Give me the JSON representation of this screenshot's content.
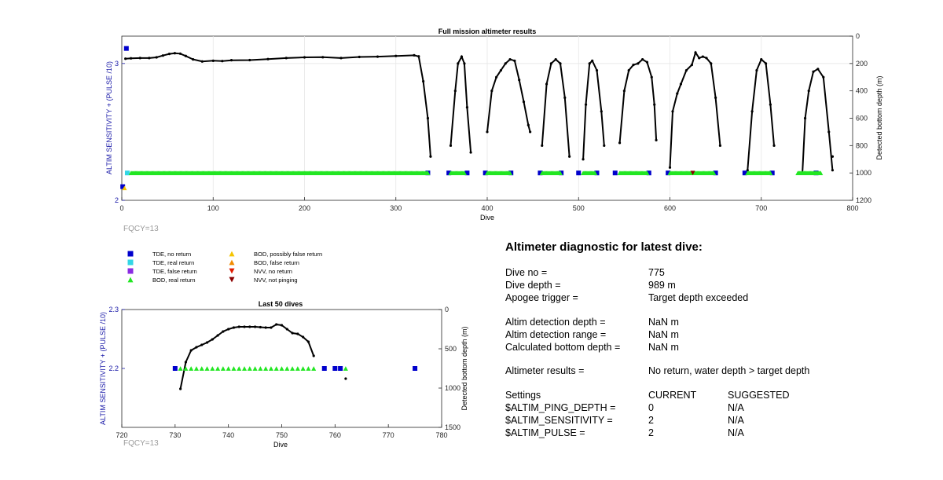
{
  "colors": {
    "tde_no_return": "#0000cc",
    "tde_real_return": "#33d6e6",
    "tde_false_return": "#8a2be2",
    "bod_real_return": "#22e622",
    "bod_possibly_false": "#f5c400",
    "bod_false_return": "#f28c00",
    "nvv_no_return": "#e01b00",
    "nvv_not_pinging": "#8b0000",
    "axis_left": "#1a1aa8",
    "depth_line": "#000000",
    "fqcy_text": "#9a9a9a"
  },
  "legend": [
    {
      "label": "TDE, no return",
      "marker": "square",
      "color": "#0000cc"
    },
    {
      "label": "TDE, real return",
      "marker": "square",
      "color": "#33d6e6"
    },
    {
      "label": "TDE, false return",
      "marker": "square",
      "color": "#8a2be2"
    },
    {
      "label": "BOD, real return",
      "marker": "triangle-up",
      "color": "#22e622"
    },
    {
      "label": "BOD, possibly false return",
      "marker": "triangle-up",
      "color": "#f5c400"
    },
    {
      "label": "BOD, false return",
      "marker": "triangle-up",
      "color": "#f28c00"
    },
    {
      "label": "NVV, no return",
      "marker": "triangle-down",
      "color": "#e01b00"
    },
    {
      "label": "NVV, not pinging",
      "marker": "triangle-down",
      "color": "#8b0000"
    }
  ],
  "chart_data": [
    {
      "type": "scatter",
      "title": "Full mission altimeter results",
      "xlabel": "Dive",
      "ylabel": "ALTIM SENSITIVITY + (PULSE /10)",
      "y2label": "Detected bottom depth (m)",
      "xlim": [
        0,
        800
      ],
      "ylim": [
        2,
        3.2
      ],
      "y2lim": [
        1200,
        0
      ],
      "xticks": [
        "0",
        "100",
        "200",
        "300",
        "400",
        "500",
        "600",
        "700",
        "800"
      ],
      "yticks": [
        "2",
        "3"
      ],
      "y2ticks": [
        "0",
        "200",
        "400",
        "600",
        "800",
        "1000",
        "1200"
      ],
      "note": "FQCY=13",
      "series": [
        {
          "name": "TDE, no return",
          "marker": "square",
          "color": "#0000cc",
          "points": [
            [
              1,
              2.1
            ],
            [
              5,
              3.11
            ],
            [
              335,
              2.2
            ],
            [
              358,
              2.2
            ],
            [
              378,
              2.2
            ],
            [
              398,
              2.2
            ],
            [
              426,
              2.2
            ],
            [
              458,
              2.2
            ],
            [
              481,
              2.2
            ],
            [
              500,
              2.2
            ],
            [
              520,
              2.2
            ],
            [
              540,
              2.2
            ],
            [
              577,
              2.2
            ],
            [
              598,
              2.2
            ],
            [
              650,
              2.2
            ],
            [
              682,
              2.2
            ],
            [
              712,
              2.2
            ],
            [
              760,
              2.2
            ]
          ]
        },
        {
          "name": "TDE, real return",
          "marker": "square",
          "color": "#33d6e6",
          "points": [
            [
              6,
              2.2
            ]
          ]
        },
        {
          "name": "BOD, real return",
          "marker": "triangle-up",
          "color": "#22e622",
          "segments": [
            [
              10,
              335
            ],
            [
              360,
              375
            ],
            [
              400,
              425
            ],
            [
              460,
              480
            ],
            [
              505,
              518
            ],
            [
              545,
              575
            ],
            [
              600,
              648
            ],
            [
              685,
              710
            ],
            [
              740,
              765
            ]
          ]
        },
        {
          "name": "BOD, possibly false return",
          "marker": "triangle-up",
          "color": "#f5c400",
          "points": [
            [
              3,
              2.09
            ]
          ]
        },
        {
          "name": "NVV, not pinging",
          "marker": "triangle-down",
          "color": "#8b0000",
          "points": [
            [
              625,
              2.2
            ]
          ]
        }
      ],
      "depth_line_segments": [
        [
          [
            4,
            165
          ],
          [
            10,
            162
          ],
          [
            20,
            160
          ],
          [
            30,
            160
          ],
          [
            38,
            155
          ],
          [
            45,
            142
          ],
          [
            52,
            130
          ],
          [
            58,
            125
          ],
          [
            64,
            128
          ],
          [
            70,
            145
          ],
          [
            78,
            170
          ],
          [
            88,
            185
          ],
          [
            100,
            180
          ],
          [
            110,
            182
          ],
          [
            120,
            176
          ],
          [
            140,
            175
          ],
          [
            160,
            168
          ],
          [
            180,
            160
          ],
          [
            200,
            155
          ],
          [
            220,
            154
          ],
          [
            240,
            160
          ],
          [
            260,
            152
          ],
          [
            280,
            150
          ],
          [
            300,
            145
          ],
          [
            320,
            140
          ],
          [
            325,
            148
          ],
          [
            330,
            330
          ],
          [
            335,
            600
          ],
          [
            338,
            880
          ]
        ],
        [
          [
            360,
            800
          ],
          [
            365,
            400
          ],
          [
            368,
            200
          ],
          [
            372,
            150
          ],
          [
            375,
            200
          ],
          [
            378,
            520
          ],
          [
            382,
            850
          ]
        ],
        [
          [
            400,
            700
          ],
          [
            405,
            400
          ],
          [
            410,
            300
          ],
          [
            415,
            250
          ],
          [
            420,
            200
          ],
          [
            425,
            170
          ],
          [
            430,
            180
          ],
          [
            435,
            320
          ],
          [
            440,
            480
          ],
          [
            445,
            650
          ],
          [
            447,
            700
          ]
        ],
        [
          [
            460,
            800
          ],
          [
            465,
            350
          ],
          [
            470,
            200
          ],
          [
            475,
            170
          ],
          [
            480,
            200
          ],
          [
            485,
            450
          ],
          [
            490,
            880
          ]
        ],
        [
          [
            505,
            900
          ],
          [
            508,
            500
          ],
          [
            512,
            200
          ],
          [
            515,
            180
          ],
          [
            520,
            250
          ],
          [
            525,
            550
          ],
          [
            528,
            800
          ]
        ],
        [
          [
            545,
            780
          ],
          [
            550,
            400
          ],
          [
            555,
            250
          ],
          [
            560,
            210
          ],
          [
            565,
            200
          ],
          [
            570,
            170
          ],
          [
            575,
            190
          ],
          [
            580,
            300
          ],
          [
            583,
            500
          ],
          [
            585,
            760
          ]
        ],
        [
          [
            600,
            960
          ],
          [
            603,
            550
          ],
          [
            608,
            420
          ],
          [
            612,
            350
          ],
          [
            618,
            250
          ],
          [
            624,
            210
          ],
          [
            628,
            120
          ],
          [
            632,
            160
          ],
          [
            636,
            150
          ],
          [
            640,
            160
          ],
          [
            645,
            200
          ],
          [
            650,
            450
          ],
          [
            655,
            800
          ]
        ],
        [
          [
            685,
            980
          ],
          [
            690,
            550
          ],
          [
            695,
            250
          ],
          [
            700,
            170
          ],
          [
            705,
            200
          ],
          [
            710,
            500
          ],
          [
            714,
            800
          ]
        ],
        [
          [
            745,
            1000
          ],
          [
            748,
            600
          ],
          [
            752,
            400
          ],
          [
            757,
            260
          ],
          [
            762,
            240
          ],
          [
            768,
            300
          ],
          [
            774,
            700
          ],
          [
            778,
            980
          ]
        ],
        [
          [
            778,
            880
          ]
        ]
      ]
    },
    {
      "type": "scatter",
      "title": "Last 50 dives",
      "xlabel": "Dive",
      "ylabel": "ALTIM SENSITIVITY + (PULSE /10)",
      "y2label": "Detected bottom depth (m)",
      "xlim": [
        720,
        780
      ],
      "ylim": [
        2.1,
        2.3
      ],
      "y2lim": [
        1500,
        0
      ],
      "xticks": [
        "720",
        "730",
        "740",
        "750",
        "760",
        "770",
        "780"
      ],
      "yticks": [
        "2.2",
        "2.3"
      ],
      "y2ticks": [
        "0",
        "500",
        "1000",
        "1500"
      ],
      "note": "FQCY=13",
      "series": [
        {
          "name": "TDE, no return",
          "marker": "square",
          "color": "#0000cc",
          "points": [
            [
              730,
              2.2
            ],
            [
              758,
              2.2
            ],
            [
              760,
              2.2
            ],
            [
              761,
              2.2
            ],
            [
              775,
              2.2
            ]
          ]
        },
        {
          "name": "BOD, real return",
          "marker": "triangle-up",
          "color": "#22e622",
          "x": [
            731,
            732,
            733,
            734,
            735,
            736,
            737,
            738,
            739,
            740,
            741,
            742,
            743,
            744,
            745,
            746,
            747,
            748,
            749,
            750,
            751,
            752,
            753,
            754,
            755,
            756,
            762
          ]
        }
      ],
      "depth_line_segments": [
        [
          [
            731,
            1010
          ],
          [
            732,
            670
          ],
          [
            733,
            520
          ],
          [
            734,
            480
          ],
          [
            735,
            450
          ],
          [
            736,
            420
          ],
          [
            737,
            380
          ],
          [
            738,
            330
          ],
          [
            739,
            280
          ],
          [
            740,
            250
          ],
          [
            741,
            230
          ],
          [
            742,
            220
          ],
          [
            743,
            220
          ],
          [
            744,
            220
          ],
          [
            745,
            220
          ],
          [
            746,
            225
          ],
          [
            747,
            230
          ],
          [
            748,
            230
          ],
          [
            749,
            190
          ],
          [
            750,
            200
          ],
          [
            751,
            250
          ],
          [
            752,
            300
          ],
          [
            753,
            310
          ],
          [
            754,
            350
          ],
          [
            755,
            410
          ],
          [
            756,
            590
          ]
        ],
        [
          [
            762,
            880
          ]
        ]
      ]
    }
  ],
  "diagnostic": {
    "title": "Altimeter diagnostic for latest dive:",
    "rows": [
      {
        "label": "Dive no =",
        "value": "775"
      },
      {
        "label": "Dive depth =",
        "value": "989 m"
      },
      {
        "label": "Apogee trigger =",
        "value": "Target depth exceeded"
      },
      {
        "label": "Altim detection depth =",
        "value": "NaN m"
      },
      {
        "label": "Altim detection range =",
        "value": "NaN m"
      },
      {
        "label": "Calculated bottom depth =",
        "value": "NaN m"
      },
      {
        "label": "Altimeter results =",
        "value": "No return, water depth > target depth"
      }
    ],
    "settings_header": {
      "label": "Settings",
      "current": "CURRENT",
      "suggested": "SUGGESTED"
    },
    "settings": [
      {
        "label": "$ALTIM_PING_DEPTH =",
        "current": "0",
        "suggested": "N/A"
      },
      {
        "label": "$ALTIM_SENSITIVITY =",
        "current": "2",
        "suggested": "N/A"
      },
      {
        "label": "$ALTIM_PULSE =",
        "current": "2",
        "suggested": "N/A"
      }
    ]
  }
}
